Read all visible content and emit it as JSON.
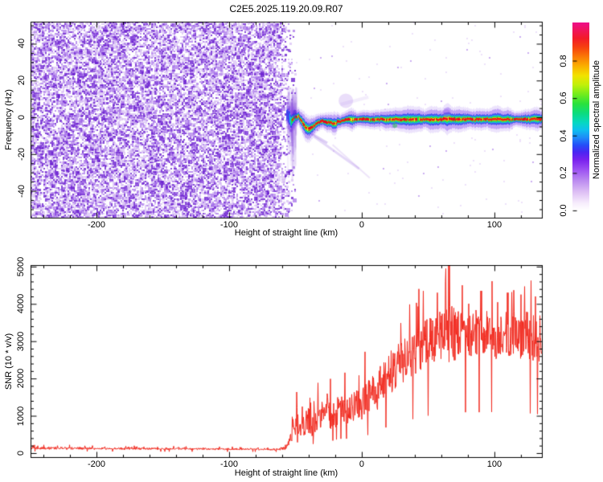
{
  "page": {
    "title": "C2E5.2025.119.20.09.R07",
    "background": "#ffffff",
    "text_color": "#000000",
    "frame_color": "#000000"
  },
  "chart_data": [
    {
      "type": "heatmap",
      "panel": "doppler-spectrogram",
      "title": "C2E5.2025.119.20.09.R07",
      "xlabel": "Height of straight line (km)",
      "ylabel": "Frequency (Hz)",
      "xlim": [
        -249.7,
        135.8
      ],
      "ylim": [
        -54.6,
        52.0
      ],
      "xticks_major": [
        -200,
        -100,
        0,
        100
      ],
      "xtick_labels": [
        "-200",
        "-100",
        "0",
        "100"
      ],
      "xtick_minor_step": 20,
      "yticks_major": [
        40,
        20,
        0,
        -20,
        -40
      ],
      "ytick_labels": [
        "40",
        "20",
        "0",
        "-20",
        "-40"
      ],
      "ytick_minor_step": 5,
      "grid": false,
      "colorbar": {
        "label": "Normalized spectral amplitude",
        "ticks": [
          0.0,
          0.2,
          0.4,
          0.6,
          0.8
        ],
        "tick_labels": [
          "0.0",
          "0.2",
          "0.4",
          "0.6",
          "0.8"
        ],
        "range": [
          -0.039,
          1.004
        ],
        "gradient_stops": [
          [
            0.0,
            "#ffffff"
          ],
          [
            0.04,
            "#f6ecfc"
          ],
          [
            0.1,
            "#ddbef4"
          ],
          [
            0.16,
            "#bb8af0"
          ],
          [
            0.22,
            "#9b4ff2"
          ],
          [
            0.27,
            "#7a22ee"
          ],
          [
            0.31,
            "#4b24f2"
          ],
          [
            0.35,
            "#2450f8"
          ],
          [
            0.39,
            "#1e8cf8"
          ],
          [
            0.43,
            "#0ec0ee"
          ],
          [
            0.47,
            "#06d8c0"
          ],
          [
            0.52,
            "#0cdc7c"
          ],
          [
            0.57,
            "#2ae23c"
          ],
          [
            0.62,
            "#72ec1c"
          ],
          [
            0.67,
            "#c0f00a"
          ],
          [
            0.72,
            "#f2e200"
          ],
          [
            0.77,
            "#fab000"
          ],
          [
            0.82,
            "#fa7a06"
          ],
          [
            0.87,
            "#f6420e"
          ],
          [
            0.92,
            "#f21a28"
          ],
          [
            1.0,
            "#ee0f86"
          ]
        ]
      },
      "noise_region": {
        "x_start": -249.7,
        "x_end": -52,
        "fade_width_km": 14,
        "density": 0.62,
        "shades": [
          "#6a1ed0",
          "#9b5fe6",
          "#cbaaf0"
        ],
        "sparse_dot_density": 0.008
      },
      "onset_smear": {
        "x_center": -53,
        "x_halfwidth": 3.5,
        "f_top": 17,
        "f_bottom": -31,
        "color": "#8a4fe0"
      },
      "signal_band": {
        "anchors": [
          [
            -56.5,
            1.5,
            4.0,
            0.45
          ],
          [
            -55,
            0.0,
            6.0,
            0.6
          ],
          [
            -53.5,
            -2.5,
            6.0,
            0.75
          ],
          [
            -52,
            -1.0,
            5.5,
            0.85
          ],
          [
            -50,
            0.0,
            5.0,
            0.9
          ],
          [
            -48,
            0.5,
            4.5,
            0.85
          ],
          [
            -46,
            -1.5,
            5.0,
            0.9
          ],
          [
            -44,
            -4.0,
            5.5,
            0.95
          ],
          [
            -42,
            -6.0,
            5.0,
            1.0
          ],
          [
            -40,
            -6.5,
            5.0,
            1.0
          ],
          [
            -38,
            -5.5,
            5.0,
            0.95
          ],
          [
            -36,
            -4.5,
            4.5,
            0.9
          ],
          [
            -33,
            -3.0,
            4.5,
            0.95
          ],
          [
            -30,
            -2.0,
            4.0,
            0.9
          ],
          [
            -27,
            -2.5,
            4.5,
            0.95
          ],
          [
            -24,
            -3.0,
            4.0,
            0.9
          ],
          [
            -21,
            -3.5,
            4.5,
            0.9
          ],
          [
            -18,
            -2.5,
            4.0,
            0.95
          ],
          [
            -15,
            -2.0,
            4.0,
            0.9
          ],
          [
            -12,
            -1.5,
            4.0,
            0.95
          ],
          [
            -8,
            -1.2,
            4.0,
            1.0
          ],
          [
            -4,
            -1.5,
            4.0,
            0.95
          ],
          [
            0,
            -1.0,
            4.0,
            1.0
          ],
          [
            5,
            -1.2,
            4.0,
            0.95
          ],
          [
            10,
            -1.5,
            4.5,
            1.0
          ],
          [
            15,
            -1.0,
            4.0,
            0.95
          ],
          [
            20,
            -1.3,
            4.5,
            1.0
          ],
          [
            25,
            -1.1,
            5.0,
            0.95
          ],
          [
            30,
            -1.2,
            4.0,
            1.0
          ],
          [
            35,
            -1.0,
            4.2,
            0.95
          ],
          [
            40,
            -1.3,
            4.0,
            1.0
          ],
          [
            45,
            -1.1,
            4.5,
            0.95
          ],
          [
            50,
            -1.0,
            4.2,
            1.0
          ],
          [
            55,
            -1.2,
            4.0,
            0.95
          ],
          [
            60,
            -1.0,
            4.5,
            1.0
          ],
          [
            64,
            -1.0,
            5.5,
            1.0
          ],
          [
            68,
            -1.2,
            5.0,
            0.95
          ],
          [
            72,
            -1.0,
            4.2,
            1.0
          ],
          [
            76,
            -1.1,
            4.0,
            0.95
          ],
          [
            80,
            -1.0,
            4.3,
            1.0
          ],
          [
            85,
            -1.2,
            4.0,
            1.0
          ],
          [
            90,
            -1.0,
            4.4,
            0.95
          ],
          [
            95,
            -1.1,
            4.0,
            1.0
          ],
          [
            100,
            -1.0,
            4.2,
            1.0
          ],
          [
            105,
            -1.2,
            4.0,
            0.95
          ],
          [
            110,
            -1.0,
            4.3,
            1.0
          ],
          [
            115,
            -1.1,
            4.0,
            1.0
          ],
          [
            120,
            -1.0,
            4.2,
            0.95
          ],
          [
            125,
            -1.1,
            4.0,
            1.0
          ],
          [
            130,
            -1.0,
            4.2,
            1.0
          ],
          [
            135.8,
            -1.0,
            4.0,
            1.0
          ]
        ],
        "layer_colors": {
          "halo": "#7b3cec",
          "blue": "#2b3cf0",
          "cyan": "#10c8e0",
          "green": "#1edc3c",
          "yellow": "#ecec10",
          "red": "#f01414",
          "dot": "#e80820"
        }
      },
      "streaks": [
        {
          "x1": -36,
          "f1": -10.5,
          "x2": -2,
          "f2": -28,
          "w": 3,
          "a": 0.22
        },
        {
          "x1": -22,
          "f1": -15,
          "x2": 6,
          "f2": -33,
          "w": 2,
          "a": 0.15
        },
        {
          "x1": -40,
          "f1": -8,
          "x2": -26,
          "f2": -14,
          "w": 3,
          "a": 0.28
        },
        {
          "x1": -16,
          "f1": 7,
          "x2": 5,
          "f2": 11,
          "w": 4,
          "a": 0.1
        }
      ],
      "blobs": [
        {
          "x": -50.5,
          "f": 1.5,
          "rx": 2.5,
          "ry": 6,
          "c": "#4416d8",
          "a": 0.5
        },
        {
          "x": 25,
          "f": -4.5,
          "rx": 3,
          "ry": 2.5,
          "c": "#28c850",
          "a": 0.55
        },
        {
          "x": 64,
          "f": 2.2,
          "rx": 5,
          "ry": 3,
          "c": "#a066e8",
          "a": 0.45
        },
        {
          "x": -12,
          "f": 9,
          "rx": 9,
          "ry": 2.5,
          "c": "#b488ec",
          "a": 0.28
        }
      ],
      "seed": 20250119
    },
    {
      "type": "line",
      "panel": "snr-profile",
      "xlabel": "Height of straight line (km)",
      "ylabel": "SNR (10 * v/v)",
      "color": "#f22b20",
      "xlim": [
        -249.7,
        135.8
      ],
      "ylim": [
        -108,
        5040
      ],
      "xticks_major": [
        -200,
        -100,
        0,
        100
      ],
      "xtick_labels": [
        "-200",
        "-100",
        "0",
        "100"
      ],
      "xtick_minor_step": 20,
      "yticks_major": [
        0,
        1000,
        2000,
        3000,
        4000,
        5000
      ],
      "ytick_labels": [
        "0",
        "1000",
        "2000",
        "3000",
        "4000",
        "5000"
      ],
      "ytick_minor_step": 200,
      "grid": false,
      "anchors": [
        [
          -250,
          130,
          70
        ],
        [
          -220,
          125,
          65
        ],
        [
          -190,
          120,
          60
        ],
        [
          -160,
          115,
          55
        ],
        [
          -130,
          110,
          50
        ],
        [
          -100,
          105,
          45
        ],
        [
          -80,
          100,
          45
        ],
        [
          -68,
          95,
          45
        ],
        [
          -62,
          100,
          60
        ],
        [
          -58,
          130,
          120
        ],
        [
          -55,
          260,
          260
        ],
        [
          -52,
          600,
          500
        ],
        [
          -49,
          850,
          700
        ],
        [
          -46,
          700,
          550
        ],
        [
          -43,
          750,
          650
        ],
        [
          -40,
          850,
          800
        ],
        [
          -37,
          700,
          550
        ],
        [
          -34,
          900,
          700
        ],
        [
          -31,
          850,
          650
        ],
        [
          -28,
          950,
          750
        ],
        [
          -25,
          1000,
          800
        ],
        [
          -22,
          950,
          700
        ],
        [
          -19,
          1050,
          800
        ],
        [
          -16,
          1100,
          850
        ],
        [
          -13,
          1050,
          800
        ],
        [
          -10,
          1150,
          850
        ],
        [
          -7,
          1200,
          900
        ],
        [
          -4,
          1150,
          850
        ],
        [
          -1,
          1300,
          950
        ],
        [
          2,
          1350,
          1000
        ],
        [
          5,
          1400,
          1000
        ],
        [
          8,
          1500,
          1050
        ],
        [
          11,
          1600,
          1100
        ],
        [
          14,
          1750,
          1100
        ],
        [
          17,
          1900,
          1100
        ],
        [
          20,
          2050,
          1150
        ],
        [
          24,
          2200,
          1150
        ],
        [
          28,
          2350,
          1150
        ],
        [
          32,
          2450,
          1200
        ],
        [
          36,
          2550,
          1200
        ],
        [
          40,
          2650,
          1250
        ],
        [
          44,
          2750,
          1300
        ],
        [
          48,
          2850,
          1300
        ],
        [
          52,
          2900,
          1350
        ],
        [
          56,
          2950,
          1400
        ],
        [
          60,
          3050,
          1500
        ],
        [
          63,
          3100,
          1600
        ],
        [
          66,
          3150,
          1900
        ],
        [
          69,
          3100,
          1500
        ],
        [
          72,
          3050,
          1400
        ],
        [
          76,
          3100,
          1350
        ],
        [
          80,
          3150,
          1300
        ],
        [
          85,
          3200,
          1300
        ],
        [
          90,
          3100,
          1250
        ],
        [
          95,
          3200,
          1300
        ],
        [
          100,
          3100,
          1300
        ],
        [
          105,
          3050,
          1250
        ],
        [
          110,
          3150,
          1300
        ],
        [
          115,
          3200,
          1300
        ],
        [
          120,
          3050,
          1250
        ],
        [
          125,
          3100,
          1300
        ],
        [
          130,
          2950,
          1400
        ],
        [
          135.8,
          3050,
          1300
        ]
      ],
      "peaks": [
        [
          66,
          5150
        ],
        [
          63,
          4600
        ],
        [
          43,
          4400
        ],
        [
          57,
          4300
        ],
        [
          76,
          4500
        ],
        [
          90,
          4350
        ],
        [
          110,
          4300
        ],
        [
          120,
          4250
        ],
        [
          131,
          4200
        ]
      ],
      "seed": 77123
    }
  ]
}
